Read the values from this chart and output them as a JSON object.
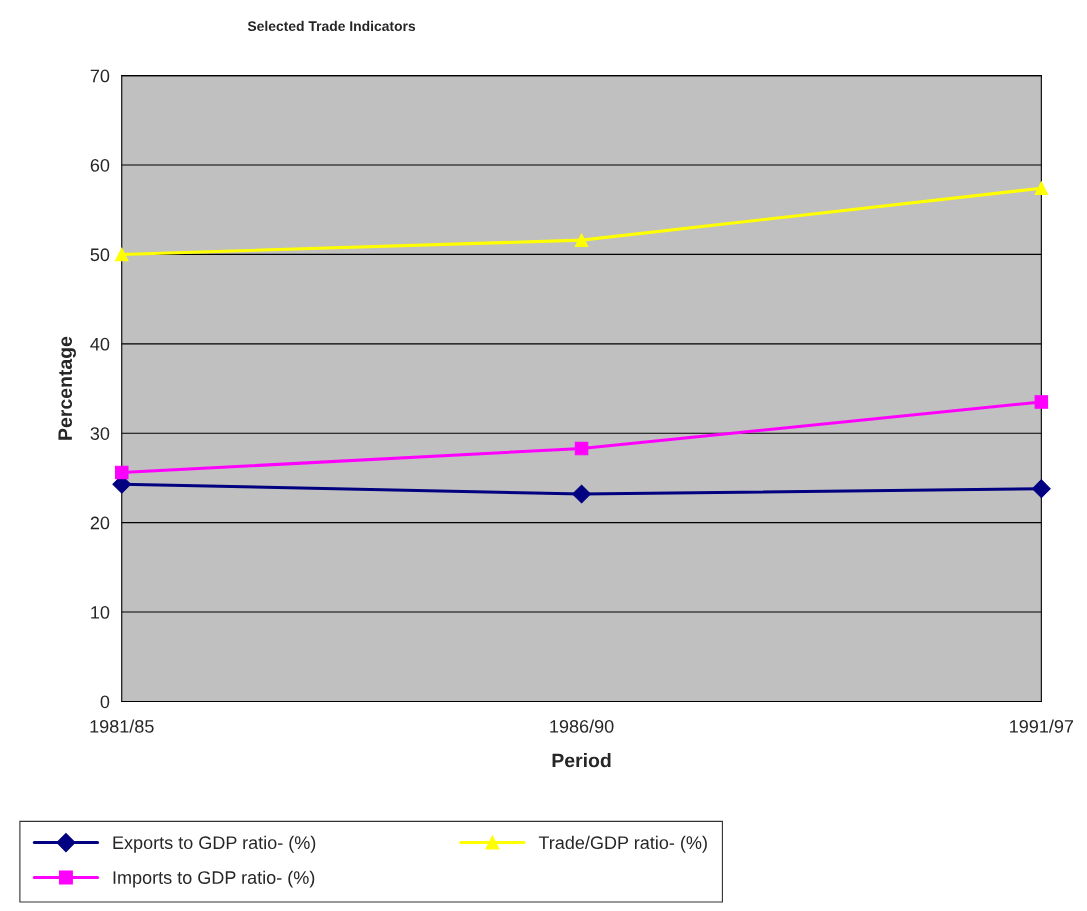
{
  "chart_data": {
    "type": "line",
    "title": "Selected Trade Indicators",
    "xlabel": "Period",
    "ylabel": "Percentage",
    "categories": [
      "1981/85",
      "1986/90",
      "1991/97"
    ],
    "series": [
      {
        "name": "Exports to GDP ratio- (%)",
        "color": "#000080",
        "marker": "diamond",
        "values": [
          24.3,
          23.2,
          23.8
        ]
      },
      {
        "name": "Imports to GDP ratio- (%)",
        "color": "#ff00ff",
        "marker": "square",
        "values": [
          25.6,
          28.3,
          33.5
        ]
      },
      {
        "name": "Trade/GDP ratio- (%)",
        "color": "#ffff00",
        "marker": "triangle",
        "values": [
          50.0,
          51.6,
          57.4
        ]
      }
    ],
    "ylim": [
      0,
      70
    ],
    "yticks": [
      0,
      10,
      20,
      30,
      40,
      50,
      60,
      70
    ],
    "grid": "y",
    "legend": "bottom"
  }
}
